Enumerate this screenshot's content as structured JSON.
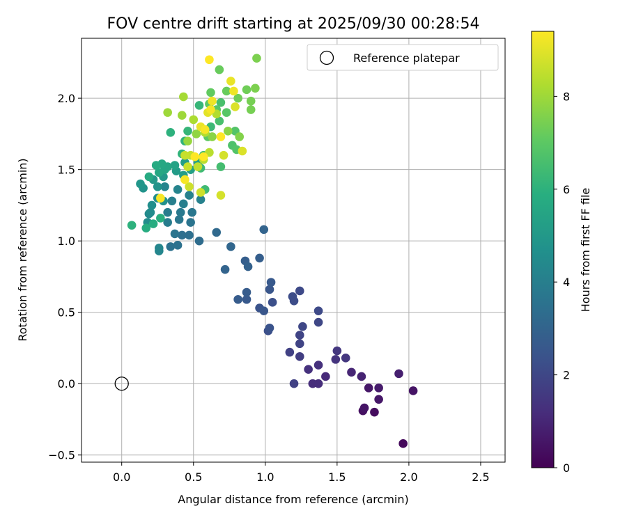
{
  "chart_data": {
    "type": "scatter",
    "title": "FOV centre drift starting at 2025/09/30 00:28:54",
    "xlabel": "Angular distance from reference (arcmin)",
    "ylabel": "Rotation from reference (arcmin)",
    "xlim": [
      -0.28,
      2.67
    ],
    "ylim": [
      -0.55,
      2.42
    ],
    "xticks": [
      0.0,
      0.5,
      1.0,
      1.5,
      2.0,
      2.5
    ],
    "xtick_labels": [
      "0.0",
      "0.5",
      "1.0",
      "1.5",
      "2.0",
      "2.5"
    ],
    "yticks": [
      -0.5,
      0.0,
      0.5,
      1.0,
      1.5,
      2.0
    ],
    "ytick_labels": [
      "−0.5",
      "0.0",
      "0.5",
      "1.0",
      "1.5",
      "2.0"
    ],
    "grid": true,
    "legend": {
      "position": "top-right",
      "label": "Reference platepar"
    },
    "reference_point": {
      "x": 0.0,
      "y": 0.0
    },
    "colorbar": {
      "label": "Hours from first FF file",
      "range": [
        0,
        9.4
      ],
      "ticks": [
        0,
        2,
        4,
        6,
        8
      ],
      "tick_labels": [
        "0",
        "2",
        "4",
        "6",
        "8"
      ],
      "colormap": "viridis"
    },
    "points": [
      [
        1.96,
        -0.42,
        0.2
      ],
      [
        1.76,
        -0.2,
        0.3
      ],
      [
        1.68,
        -0.19,
        0.4
      ],
      [
        1.69,
        -0.17,
        0.5
      ],
      [
        1.79,
        -0.11,
        0.6
      ],
      [
        1.72,
        -0.03,
        0.6
      ],
      [
        1.79,
        -0.03,
        0.7
      ],
      [
        2.03,
        -0.05,
        0.5
      ],
      [
        1.93,
        0.07,
        0.8
      ],
      [
        1.67,
        0.05,
        0.9
      ],
      [
        1.6,
        0.08,
        1.0
      ],
      [
        1.42,
        0.05,
        1.1
      ],
      [
        1.37,
        0.0,
        1.2
      ],
      [
        1.33,
        0.0,
        1.2
      ],
      [
        1.3,
        0.1,
        1.3
      ],
      [
        1.37,
        0.13,
        1.3
      ],
      [
        1.49,
        0.17,
        1.4
      ],
      [
        1.56,
        0.18,
        1.5
      ],
      [
        1.5,
        0.23,
        1.5
      ],
      [
        1.24,
        0.19,
        1.7
      ],
      [
        1.2,
        0.0,
        1.8
      ],
      [
        1.17,
        0.22,
        1.8
      ],
      [
        1.24,
        0.28,
        1.9
      ],
      [
        1.24,
        0.34,
        1.9
      ],
      [
        1.26,
        0.4,
        2.0
      ],
      [
        1.37,
        0.43,
        2.0
      ],
      [
        1.37,
        0.51,
        2.1
      ],
      [
        1.24,
        0.65,
        2.1
      ],
      [
        1.2,
        0.58,
        2.2
      ],
      [
        1.19,
        0.61,
        2.2
      ],
      [
        1.05,
        0.57,
        2.3
      ],
      [
        1.02,
        0.37,
        2.3
      ],
      [
        1.03,
        0.39,
        2.4
      ],
      [
        0.96,
        0.53,
        2.4
      ],
      [
        0.99,
        0.51,
        2.5
      ],
      [
        1.03,
        0.66,
        2.5
      ],
      [
        1.04,
        0.71,
        2.6
      ],
      [
        0.87,
        0.59,
        2.6
      ],
      [
        0.87,
        0.64,
        2.7
      ],
      [
        0.81,
        0.59,
        2.7
      ],
      [
        0.96,
        0.88,
        2.8
      ],
      [
        0.86,
        0.86,
        2.8
      ],
      [
        0.88,
        0.82,
        2.9
      ],
      [
        0.72,
        0.8,
        3.0
      ],
      [
        0.99,
        1.08,
        3.0
      ],
      [
        0.76,
        0.96,
        3.1
      ],
      [
        0.66,
        1.06,
        3.2
      ],
      [
        0.54,
        1.0,
        3.3
      ],
      [
        0.47,
        1.04,
        3.4
      ],
      [
        0.42,
        1.04,
        3.4
      ],
      [
        0.39,
        0.97,
        3.5
      ],
      [
        0.34,
        0.96,
        3.5
      ],
      [
        0.37,
        1.05,
        3.6
      ],
      [
        0.48,
        1.13,
        3.6
      ],
      [
        0.49,
        1.2,
        3.7
      ],
      [
        0.4,
        1.15,
        3.7
      ],
      [
        0.41,
        1.2,
        3.8
      ],
      [
        0.32,
        1.13,
        3.9
      ],
      [
        0.32,
        1.2,
        3.9
      ],
      [
        0.35,
        1.28,
        4.0
      ],
      [
        0.43,
        1.26,
        4.0
      ],
      [
        0.55,
        1.29,
        4.1
      ],
      [
        0.47,
        1.32,
        4.1
      ],
      [
        0.39,
        1.36,
        4.2
      ],
      [
        0.3,
        1.38,
        4.2
      ],
      [
        0.26,
        0.93,
        4.3
      ],
      [
        0.26,
        0.95,
        4.3
      ],
      [
        0.19,
        1.19,
        4.4
      ],
      [
        0.18,
        1.13,
        4.5
      ],
      [
        0.2,
        1.2,
        4.5
      ],
      [
        0.21,
        1.25,
        4.6
      ],
      [
        0.25,
        1.3,
        4.6
      ],
      [
        0.29,
        1.28,
        4.7
      ],
      [
        0.25,
        1.38,
        4.8
      ],
      [
        0.15,
        1.37,
        4.8
      ],
      [
        0.13,
        1.4,
        4.9
      ],
      [
        0.22,
        1.43,
        5.0
      ],
      [
        0.29,
        1.45,
        5.0
      ],
      [
        0.38,
        1.49,
        5.1
      ],
      [
        0.44,
        1.55,
        5.2
      ],
      [
        0.43,
        1.46,
        5.2
      ],
      [
        0.48,
        1.5,
        5.3
      ],
      [
        0.53,
        1.55,
        5.3
      ],
      [
        0.37,
        1.53,
        5.4
      ],
      [
        0.32,
        1.52,
        5.5
      ],
      [
        0.3,
        1.5,
        5.5
      ],
      [
        0.28,
        1.54,
        5.6
      ],
      [
        0.26,
        1.48,
        5.6
      ],
      [
        0.24,
        1.53,
        5.7
      ],
      [
        0.19,
        1.45,
        5.7
      ],
      [
        0.17,
        1.09,
        5.8
      ],
      [
        0.22,
        1.12,
        5.8
      ],
      [
        0.27,
        1.16,
        5.9
      ],
      [
        0.07,
        1.11,
        6.0
      ],
      [
        0.34,
        1.76,
        6.0
      ],
      [
        0.42,
        1.61,
        6.1
      ],
      [
        0.44,
        1.7,
        6.1
      ],
      [
        0.46,
        1.77,
        6.2
      ],
      [
        0.54,
        1.95,
        6.2
      ],
      [
        0.62,
        1.8,
        6.3
      ],
      [
        0.55,
        1.51,
        6.4
      ],
      [
        0.58,
        1.36,
        6.4
      ],
      [
        0.57,
        1.6,
        6.5
      ],
      [
        0.69,
        1.52,
        6.5
      ],
      [
        0.68,
        1.84,
        6.6
      ],
      [
        0.69,
        1.97,
        6.6
      ],
      [
        0.77,
        1.67,
        6.7
      ],
      [
        0.8,
        1.64,
        6.8
      ],
      [
        0.79,
        1.77,
        6.8
      ],
      [
        0.73,
        1.9,
        6.9
      ],
      [
        0.66,
        1.92,
        6.9
      ],
      [
        0.6,
        1.73,
        7.0
      ],
      [
        0.61,
        1.96,
        7.0
      ],
      [
        0.62,
        2.04,
        7.1
      ],
      [
        0.68,
        2.2,
        7.2
      ],
      [
        0.73,
        2.05,
        7.2
      ],
      [
        0.81,
        2.0,
        7.3
      ],
      [
        0.87,
        2.06,
        7.3
      ],
      [
        0.9,
        1.98,
        7.4
      ],
      [
        0.9,
        1.92,
        7.4
      ],
      [
        0.93,
        2.07,
        7.5
      ],
      [
        0.94,
        2.28,
        7.5
      ],
      [
        0.82,
        1.73,
        7.6
      ],
      [
        0.74,
        1.77,
        7.7
      ],
      [
        0.63,
        1.73,
        7.7
      ],
      [
        0.52,
        1.75,
        7.8
      ],
      [
        0.46,
        1.7,
        7.9
      ],
      [
        0.42,
        1.88,
        8.0
      ],
      [
        0.32,
        1.9,
        8.0
      ],
      [
        0.43,
        2.01,
        8.1
      ],
      [
        0.5,
        1.85,
        8.2
      ],
      [
        0.58,
        1.76,
        8.3
      ],
      [
        0.66,
        1.89,
        8.3
      ],
      [
        0.61,
        1.62,
        8.4
      ],
      [
        0.57,
        1.57,
        8.4
      ],
      [
        0.53,
        1.52,
        8.5
      ],
      [
        0.48,
        1.6,
        8.5
      ],
      [
        0.46,
        1.52,
        8.6
      ],
      [
        0.44,
        1.6,
        8.6
      ],
      [
        0.47,
        1.38,
        8.7
      ],
      [
        0.55,
        1.34,
        8.7
      ],
      [
        0.69,
        1.32,
        8.8
      ],
      [
        0.71,
        1.6,
        8.8
      ],
      [
        0.84,
        1.63,
        8.9
      ],
      [
        0.79,
        1.94,
        8.9
      ],
      [
        0.6,
        1.9,
        9.0
      ],
      [
        0.55,
        1.8,
        9.1
      ],
      [
        0.76,
        2.12,
        9.1
      ],
      [
        0.78,
        2.05,
        9.2
      ],
      [
        0.63,
        1.98,
        9.2
      ],
      [
        0.58,
        1.78,
        9.3
      ],
      [
        0.62,
        1.92,
        9.3
      ],
      [
        0.27,
        1.3,
        9.3
      ],
      [
        0.44,
        1.43,
        9.3
      ],
      [
        0.51,
        1.59,
        9.4
      ],
      [
        0.69,
        1.73,
        9.4
      ],
      [
        0.61,
        2.27,
        9.4
      ],
      [
        0.57,
        1.59,
        9.4
      ]
    ]
  }
}
